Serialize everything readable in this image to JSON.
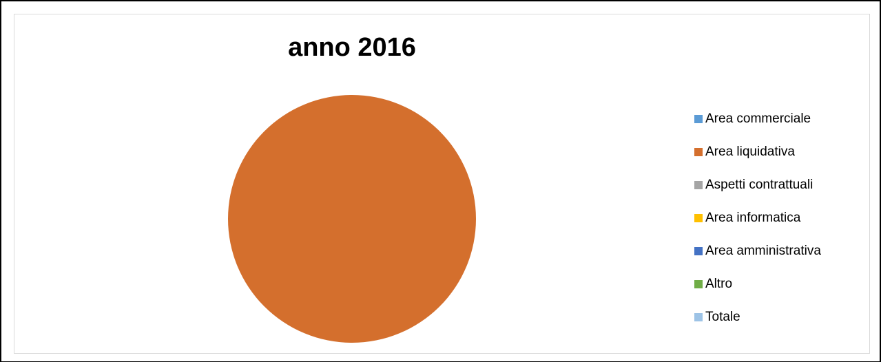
{
  "chart_data": {
    "type": "pie",
    "title": "anno 2016",
    "categories": [
      "Area commerciale",
      "Area liquidativa",
      "Aspetti contrattuali",
      "Area informatica",
      "Area amministrativa",
      "Altro",
      "Totale"
    ],
    "values": [
      0,
      100,
      0,
      0,
      0,
      0,
      0
    ],
    "colors": [
      "#5b9bd5",
      "#d46f2d",
      "#a5a5a5",
      "#ffc000",
      "#4472c4",
      "#70ad47",
      "#9dc3e6"
    ],
    "legend_position": "right"
  }
}
